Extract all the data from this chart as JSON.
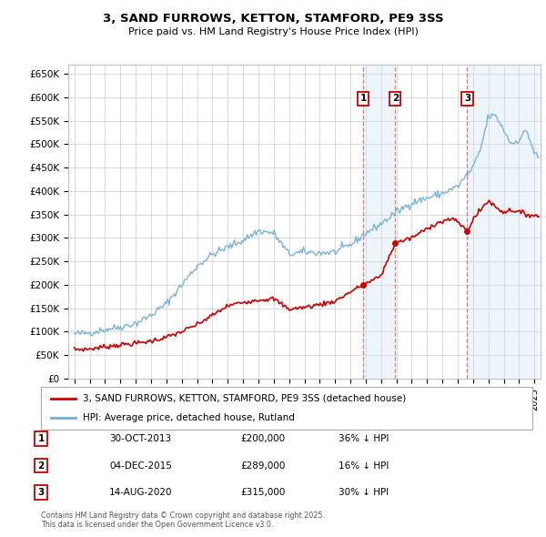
{
  "title": "3, SAND FURROWS, KETTON, STAMFORD, PE9 3SS",
  "subtitle": "Price paid vs. HM Land Registry's House Price Index (HPI)",
  "hpi_label": "HPI: Average price, detached house, Rutland",
  "property_label": "3, SAND FURROWS, KETTON, STAMFORD, PE9 3SS (detached house)",
  "footnote": "Contains HM Land Registry data © Crown copyright and database right 2025.\nThis data is licensed under the Open Government Licence v3.0.",
  "ylim": [
    0,
    670000
  ],
  "yticks": [
    0,
    50000,
    100000,
    150000,
    200000,
    250000,
    300000,
    350000,
    400000,
    450000,
    500000,
    550000,
    600000,
    650000
  ],
  "ytick_labels": [
    "£0",
    "£50K",
    "£100K",
    "£150K",
    "£200K",
    "£250K",
    "£300K",
    "£350K",
    "£400K",
    "£450K",
    "£500K",
    "£550K",
    "£600K",
    "£650K"
  ],
  "xlim_start": 1994.6,
  "xlim_end": 2025.4,
  "sale_dates": [
    2013.83,
    2015.92,
    2020.62
  ],
  "sale_prices": [
    200000,
    289000,
    315000
  ],
  "sale_labels": [
    "1",
    "2",
    "3"
  ],
  "sale_info": [
    {
      "num": "1",
      "date": "30-OCT-2013",
      "price": "£200,000",
      "hpi": "36% ↓ HPI"
    },
    {
      "num": "2",
      "date": "04-DEC-2015",
      "price": "£289,000",
      "hpi": "16% ↓ HPI"
    },
    {
      "num": "3",
      "date": "14-AUG-2020",
      "price": "£315,000",
      "hpi": "30% ↓ HPI"
    }
  ],
  "hpi_color": "#74afd4",
  "property_color": "#cc0000",
  "sale_marker_color": "#cc0000",
  "background_color": "#ffffff",
  "grid_color": "#cccccc",
  "shade_color": "#c8dff0",
  "hpi_keypoints_x": [
    1995.0,
    1996.0,
    1997.0,
    1998.0,
    1999.0,
    2000.0,
    2001.0,
    2002.0,
    2003.0,
    2004.0,
    2005.0,
    2006.0,
    2007.0,
    2008.0,
    2009.0,
    2010.0,
    2011.0,
    2012.0,
    2013.0,
    2014.0,
    2015.0,
    2016.0,
    2017.0,
    2018.0,
    2019.0,
    2020.0,
    2021.0,
    2021.5,
    2022.0,
    2022.5,
    2023.0,
    2023.5,
    2024.0,
    2024.5,
    2025.0,
    2025.3
  ],
  "hpi_keypoints_y": [
    95000,
    98000,
    105000,
    110000,
    118000,
    135000,
    160000,
    200000,
    240000,
    265000,
    280000,
    295000,
    315000,
    310000,
    265000,
    270000,
    268000,
    270000,
    285000,
    310000,
    330000,
    355000,
    375000,
    385000,
    395000,
    410000,
    450000,
    490000,
    560000,
    560000,
    530000,
    500000,
    510000,
    530000,
    480000,
    470000
  ],
  "prop_keypoints_x": [
    1995.0,
    1996.0,
    1997.0,
    1998.0,
    1999.0,
    2000.0,
    2001.0,
    2002.0,
    2003.0,
    2004.0,
    2005.0,
    2006.0,
    2007.0,
    2008.0,
    2009.0,
    2010.0,
    2011.0,
    2012.0,
    2013.0,
    2013.83,
    2014.5,
    2015.0,
    2015.92,
    2016.5,
    2017.0,
    2017.5,
    2018.0,
    2018.5,
    2019.0,
    2019.5,
    2020.0,
    2020.62,
    2021.0,
    2021.5,
    2022.0,
    2022.5,
    2023.0,
    2023.5,
    2024.0,
    2024.5,
    2025.0,
    2025.3
  ],
  "prop_keypoints_y": [
    62000,
    63000,
    68000,
    72000,
    75000,
    80000,
    88000,
    100000,
    115000,
    135000,
    155000,
    163000,
    168000,
    170000,
    148000,
    152000,
    158000,
    165000,
    185000,
    200000,
    210000,
    220000,
    289000,
    295000,
    300000,
    310000,
    320000,
    330000,
    335000,
    340000,
    335000,
    315000,
    340000,
    360000,
    380000,
    365000,
    355000,
    360000,
    355000,
    350000,
    348000,
    345000
  ]
}
